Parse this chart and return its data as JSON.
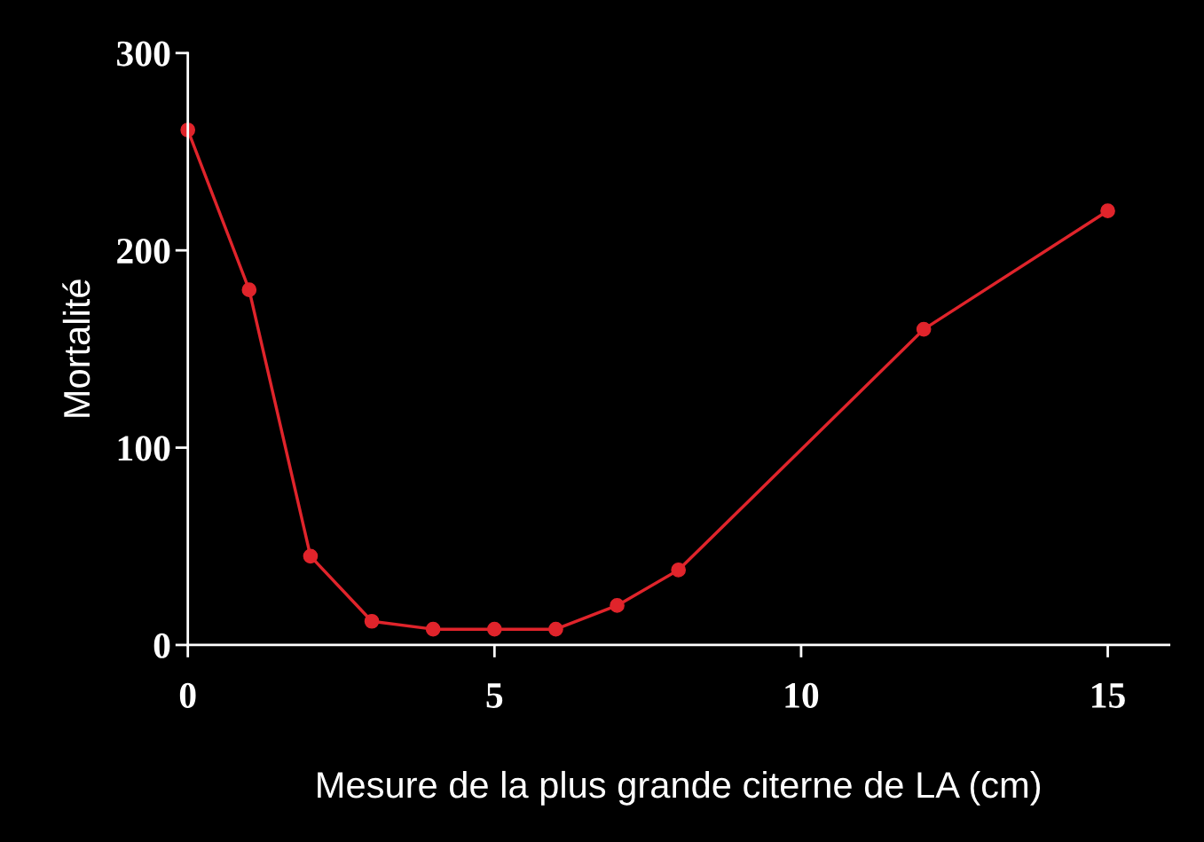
{
  "chart_data": {
    "type": "line",
    "xlabel": "Mesure de la plus grande citerne de LA (cm)",
    "ylabel": "Mortalité",
    "x": [
      0,
      1,
      2,
      3,
      4,
      5,
      6,
      7,
      8,
      12,
      15
    ],
    "series": [
      {
        "color": "#e0242b",
        "values": [
          261,
          180,
          45,
          12,
          8,
          8,
          8,
          20,
          38,
          160,
          220
        ]
      }
    ],
    "xlim": [
      0,
      16
    ],
    "xticks": [
      0,
      5,
      10,
      15
    ],
    "ylim": [
      0,
      300
    ],
    "yticks": [
      0,
      100,
      200,
      300
    ],
    "grid": false,
    "legend": false,
    "marker": "circle",
    "line_style": "solid"
  }
}
